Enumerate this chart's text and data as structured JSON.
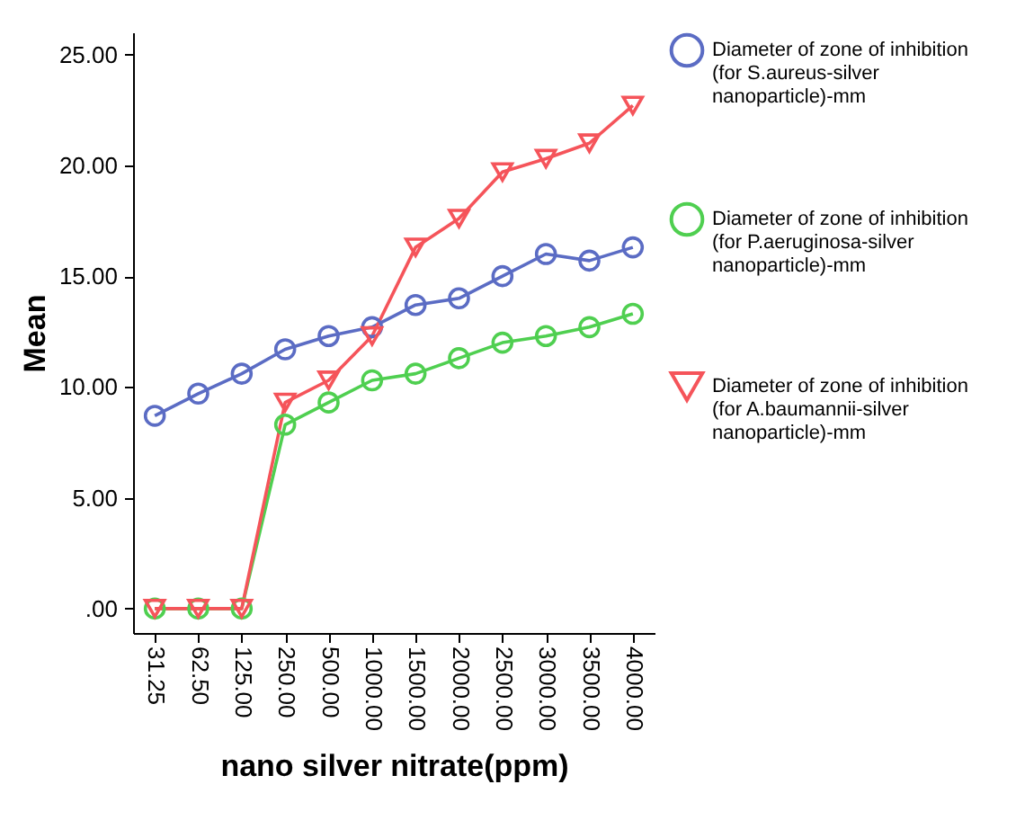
{
  "chart_data": {
    "type": "line",
    "xlabel": "nano silver nitrate(ppm)",
    "ylabel": "Mean",
    "categories": [
      "31.25",
      "62.50",
      "125.00",
      "250.00",
      "500.00",
      "1000.00",
      "1500.00",
      "2000.00",
      "2500.00",
      "3000.00",
      "3500.00",
      "4000.00"
    ],
    "series": [
      {
        "name": "Diameter of zone of inhibition (for S.aureus-silver nanoparticle)-mm",
        "color": "#5b6cc4",
        "marker": "circle",
        "values": [
          8.7,
          9.7,
          10.6,
          11.7,
          12.3,
          12.7,
          13.7,
          14.0,
          15.0,
          16.0,
          15.7,
          16.3
        ]
      },
      {
        "name": "Diameter of zone of inhibition (for P.aeruginosa-silver nanoparticle)-mm",
        "color": "#4fcf50",
        "marker": "circle",
        "values": [
          0,
          0,
          0,
          8.3,
          9.3,
          10.3,
          10.6,
          11.3,
          12.0,
          12.3,
          12.7,
          13.3
        ]
      },
      {
        "name": "Diameter of zone of inhibition (for A.baumannii-silver nanoparticle)-mm",
        "color": "#f5545a",
        "marker": "triangle",
        "values": [
          0,
          0,
          0,
          9.3,
          10.3,
          12.3,
          16.3,
          17.6,
          19.7,
          20.3,
          21.0,
          22.7
        ]
      }
    ],
    "ylim": [
      -1.1,
      26
    ],
    "yticks": [
      {
        "value": 0,
        "label": ".00"
      },
      {
        "value": 5,
        "label": "5.00"
      },
      {
        "value": 10,
        "label": "10.00"
      },
      {
        "value": 15,
        "label": "15.00"
      },
      {
        "value": 20,
        "label": "20.00"
      },
      {
        "value": 25,
        "label": "25.00"
      }
    ],
    "grid": false,
    "legend": "right",
    "line_style": "solid"
  }
}
